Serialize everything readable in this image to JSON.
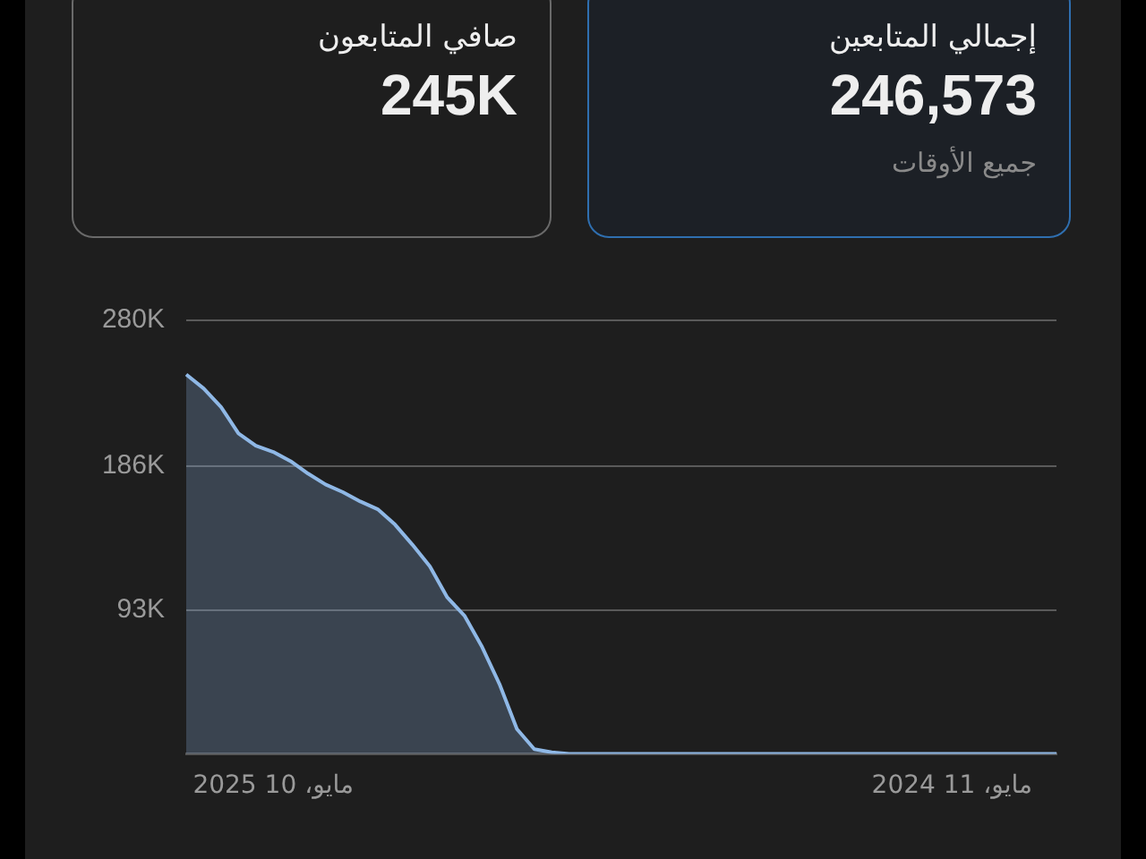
{
  "chart_data": [
    {
      "type": "other",
      "title": "إجمالي المتابعين",
      "annotations": [
        "246,573",
        "جميع الأوقات"
      ]
    },
    {
      "type": "other",
      "title": "صافي المتابعون",
      "annotations": [
        "245K"
      ]
    },
    {
      "type": "area",
      "categories": [
        null,
        null,
        null,
        null,
        null,
        "مايو، 10 2025",
        null,
        null,
        null,
        null,
        null,
        null,
        null,
        null,
        null,
        null,
        null,
        null,
        null,
        null,
        null,
        null,
        null,
        null,
        null,
        null,
        null,
        null,
        null,
        null,
        null,
        null,
        null,
        null,
        null,
        null,
        null,
        null,
        null,
        null,
        null,
        null,
        null,
        null,
        "مايو، 11 2024",
        null,
        null,
        null,
        null,
        null,
        null
      ],
      "values": [
        245000,
        236000,
        224000,
        207000,
        199000,
        195000,
        189000,
        181000,
        174000,
        169000,
        163000,
        158000,
        148000,
        135000,
        121000,
        101000,
        89000,
        69000,
        45000,
        16000,
        3000,
        1000,
        0,
        0,
        0,
        0,
        0,
        0,
        0,
        0,
        0,
        0,
        0,
        0,
        0,
        0,
        0,
        0,
        0,
        0,
        0,
        0,
        0,
        0,
        0,
        0,
        0,
        0,
        0,
        0,
        0
      ],
      "color": "#8fb8e6",
      "ylim": [
        0,
        280000
      ],
      "yticks": [
        {
          "value": 0,
          "label": null
        },
        {
          "value": 93000,
          "label": "93K"
        },
        {
          "value": 186000,
          "label": "186K"
        },
        {
          "value": 280000,
          "label": "280K"
        }
      ],
      "grid": "y",
      "legend": false
    }
  ]
}
